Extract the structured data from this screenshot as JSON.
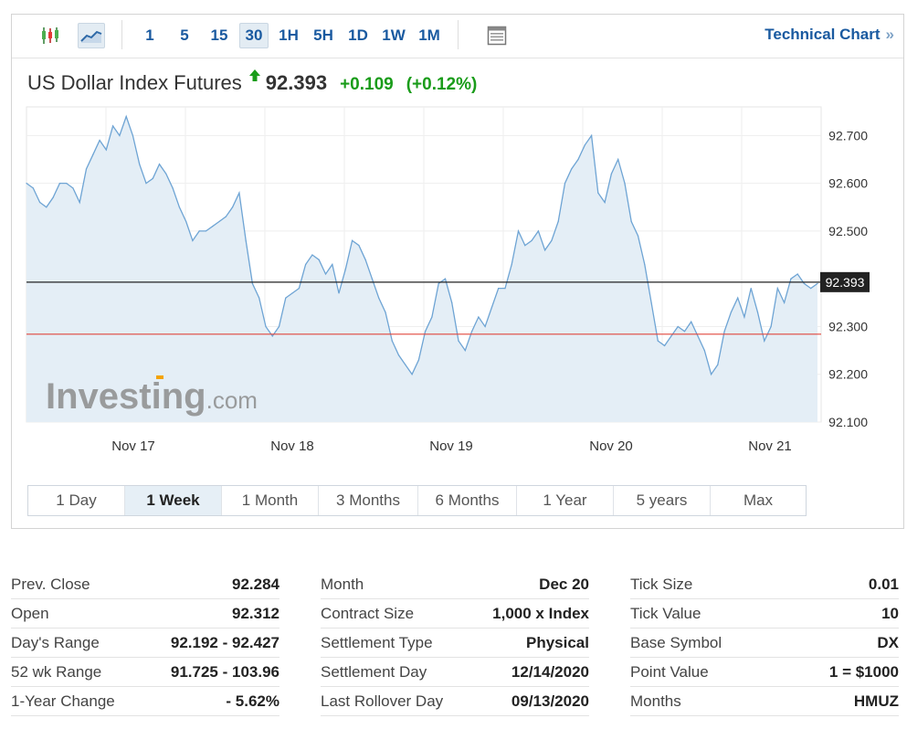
{
  "toolbar": {
    "chart_type_icons": [
      "candlestick-icon",
      "area-chart-icon"
    ],
    "intervals": [
      "1",
      "5",
      "15",
      "30",
      "1H",
      "5H",
      "1D",
      "1W",
      "1M"
    ],
    "selected_interval": "30",
    "layout_icon": "page-layout-icon",
    "technical_chart_label": "Technical Chart",
    "technical_chart_arrow": "»"
  },
  "headline": {
    "name": "US Dollar Index Futures",
    "direction_icon": "up-arrow-icon",
    "price": "92.393",
    "change": "+0.109",
    "change_percent": "(+0.12%)"
  },
  "colors": {
    "line": "#6ea4d4",
    "area_fill": "#e4eef6",
    "positive": "#1a9c1a",
    "link": "#1a5aa0",
    "last_price_line": "#222222",
    "prev_close_line": "#e0463c"
  },
  "watermark": {
    "brand": "Investing",
    "suffix": ".com"
  },
  "chart_data": {
    "type": "area",
    "x_tick_labels": [
      "Nov 17",
      "Nov 18",
      "Nov 19",
      "Nov 20",
      "Nov 21"
    ],
    "y_tick_labels": [
      "92.700",
      "92.600",
      "92.500",
      "92.300",
      "92.200",
      "92.100"
    ],
    "ylim": [
      92.1,
      92.76
    ],
    "y_axis_position": "right",
    "grid": true,
    "last_price": 92.393,
    "last_price_label": "92.393",
    "reference_line": 92.284,
    "series": [
      {
        "values": [
          92.6,
          92.59,
          92.56,
          92.55,
          92.57,
          92.6,
          92.6,
          92.59,
          92.56,
          92.63,
          92.66,
          92.69,
          92.67,
          92.72,
          92.7,
          92.74,
          92.7,
          92.64,
          92.6,
          92.61,
          92.64,
          92.62,
          92.59,
          92.55,
          92.52,
          92.48,
          92.5,
          92.5,
          92.51,
          92.52,
          92.53,
          92.55,
          92.58,
          92.48,
          92.39,
          92.36,
          92.3,
          92.28,
          92.3,
          92.36,
          92.37,
          92.38,
          92.43,
          92.45,
          92.44,
          92.41,
          92.43,
          92.37,
          92.42,
          92.48,
          92.47,
          92.44,
          92.4,
          92.36,
          92.33,
          92.27,
          92.24,
          92.22,
          92.2,
          92.23,
          92.29,
          92.32,
          92.39,
          92.4,
          92.35,
          92.27,
          92.25,
          92.29,
          92.32,
          92.3,
          92.34,
          92.38,
          92.38,
          92.43,
          92.5,
          92.47,
          92.48,
          92.5,
          92.46,
          92.48,
          92.52,
          92.6,
          92.63,
          92.65,
          92.68,
          92.7,
          92.58,
          92.56,
          92.62,
          92.65,
          92.6,
          92.52,
          92.49,
          92.43,
          92.35,
          92.27,
          92.26,
          92.28,
          92.3,
          92.29,
          92.31,
          92.28,
          92.25,
          92.2,
          92.22,
          92.29,
          92.33,
          92.36,
          92.32,
          92.38,
          92.33,
          92.27,
          92.3,
          92.38,
          92.35,
          92.4,
          92.41,
          92.39,
          92.38,
          92.39
        ]
      }
    ]
  },
  "periods": [
    "1 Day",
    "1 Week",
    "1 Month",
    "3 Months",
    "6 Months",
    "1 Year",
    "5 years",
    "Max"
  ],
  "active_period": "1 Week",
  "stats": {
    "col1": [
      {
        "label": "Prev. Close",
        "value": "92.284"
      },
      {
        "label": "Open",
        "value": "92.312"
      },
      {
        "label": "Day's Range",
        "value": "92.192 - 92.427"
      },
      {
        "label": "52 wk Range",
        "value": "91.725 - 103.96"
      },
      {
        "label": "1-Year Change",
        "value": "- 5.62%"
      }
    ],
    "col2": [
      {
        "label": "Month",
        "value": "Dec 20"
      },
      {
        "label": "Contract Size",
        "value": "1,000 x Index"
      },
      {
        "label": "Settlement Type",
        "value": "Physical"
      },
      {
        "label": "Settlement Day",
        "value": "12/14/2020"
      },
      {
        "label": "Last Rollover Day",
        "value": "09/13/2020"
      }
    ],
    "col3": [
      {
        "label": "Tick Size",
        "value": "0.01"
      },
      {
        "label": "Tick Value",
        "value": "10"
      },
      {
        "label": "Base Symbol",
        "value": "DX"
      },
      {
        "label": "Point Value",
        "value": "1 = $1000"
      },
      {
        "label": "Months",
        "value": "HMUZ"
      }
    ]
  }
}
